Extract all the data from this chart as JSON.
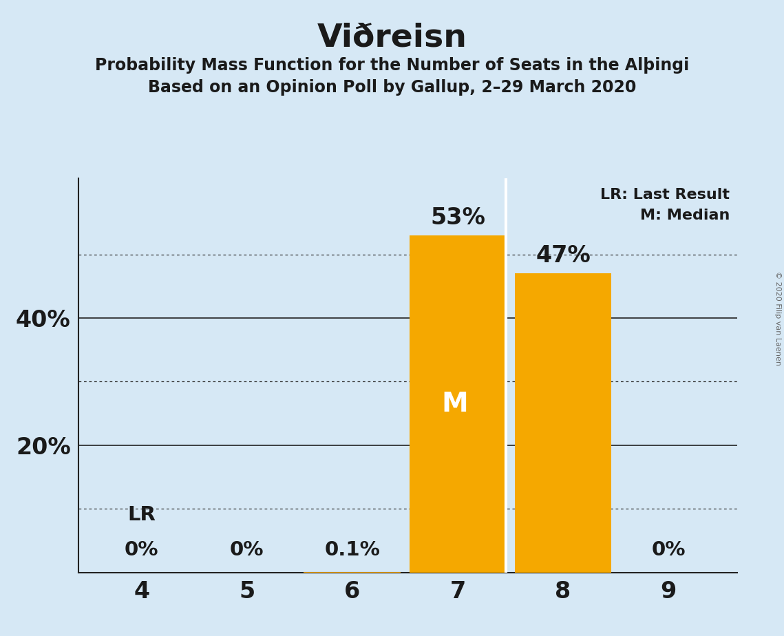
{
  "title": "Viðreisn",
  "subtitle1": "Probability Mass Function for the Number of Seats in the Alþingi",
  "subtitle2": "Based on an Opinion Poll by Gallup, 2–29 March 2020",
  "copyright": "© 2020 Filip van Laenen",
  "categories": [
    4,
    5,
    6,
    7,
    8,
    9
  ],
  "values": [
    0.0,
    0.0,
    0.001,
    0.53,
    0.47,
    0.0
  ],
  "bar_color": "#F5A800",
  "background_color": "#D6E8F5",
  "text_color": "#1a1a1a",
  "median_bar": 7,
  "last_result_bar": 4,
  "solid_yticks": [
    0.2,
    0.4
  ],
  "solid_ytick_labels": [
    "20%",
    "40%"
  ],
  "dotted_gridlines": [
    0.1,
    0.3,
    0.5
  ],
  "ylim": [
    0,
    0.62
  ],
  "bar_labels": {
    "4": "0%",
    "5": "0%",
    "6": "0.1%",
    "7": "53%",
    "8": "47%",
    "9": "0%"
  },
  "median_label": "M",
  "lr_label": "LR",
  "legend_lr": "LR: Last Result",
  "legend_m": "M: Median",
  "separator_color": "white"
}
